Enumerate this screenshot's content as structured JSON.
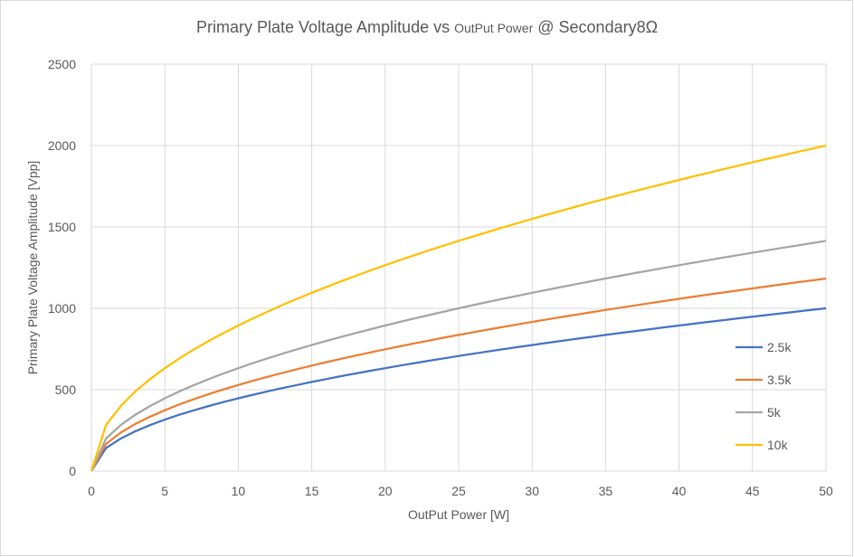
{
  "chart_data": {
    "type": "line",
    "title": {
      "part1": "Primary Plate Voltage Amplitude vs ",
      "part2": "OutPut Power",
      "part3": " @ Secondary8Ω"
    },
    "xlabel": "OutPut Power [W]",
    "ylabel": "Primary Plate Voltage Amplitude [Vpp]",
    "xlim": [
      0,
      50
    ],
    "ylim": [
      0,
      2500
    ],
    "xticks": [
      "0",
      "5",
      "10",
      "15",
      "20",
      "25",
      "30",
      "35",
      "40",
      "45",
      "50"
    ],
    "yticks": [
      "0",
      "500",
      "1000",
      "1500",
      "2000",
      "2500"
    ],
    "grid": true,
    "legend_position": "right",
    "series": [
      {
        "name": "2.5k",
        "color": "#4472C4",
        "k": 141.42
      },
      {
        "name": "3.5k",
        "color": "#ED7D31",
        "k": 167.33
      },
      {
        "name": "5k",
        "color": "#A5A5A5",
        "k": 200.0
      },
      {
        "name": "10k",
        "color": "#FFC000",
        "k": 282.84
      }
    ],
    "x": [
      0,
      1,
      2,
      3,
      4,
      5,
      6,
      7,
      8,
      9,
      10,
      11,
      12,
      13,
      14,
      15,
      16,
      17,
      18,
      19,
      20,
      21,
      22,
      23,
      24,
      25,
      26,
      27,
      28,
      29,
      30,
      31,
      32,
      33,
      34,
      35,
      36,
      37,
      38,
      39,
      40,
      41,
      42,
      43,
      44,
      45,
      46,
      47,
      48,
      49,
      50
    ]
  }
}
